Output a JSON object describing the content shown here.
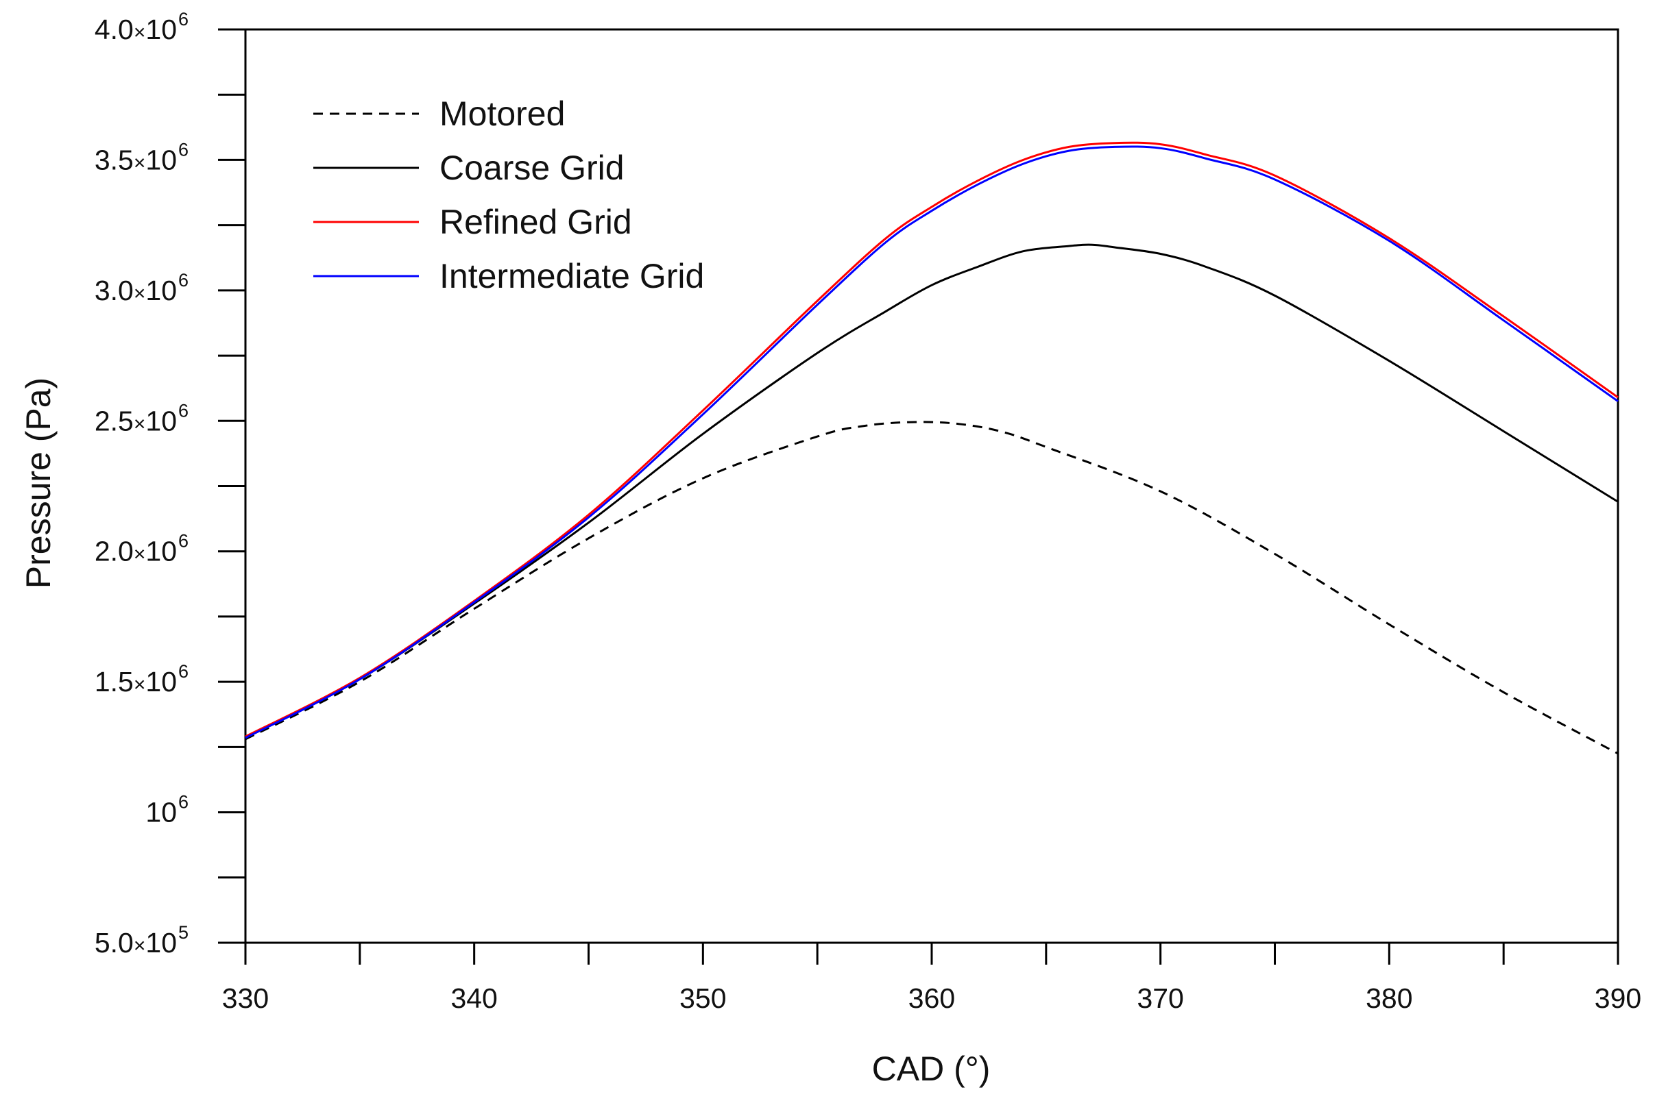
{
  "chart_data": {
    "type": "line",
    "title": "",
    "xlabel": "CAD (°)",
    "ylabel": "Pressure (Pa)",
    "xlim": [
      330,
      390
    ],
    "ylim": [
      500000,
      4000000
    ],
    "grid": false,
    "legend_position": "top-left",
    "x_ticks": [
      {
        "value": 330,
        "label": "330"
      },
      {
        "value": 340,
        "label": "340"
      },
      {
        "value": 350,
        "label": "350"
      },
      {
        "value": 360,
        "label": "360"
      },
      {
        "value": 370,
        "label": "370"
      },
      {
        "value": 380,
        "label": "380"
      },
      {
        "value": 390,
        "label": "390"
      }
    ],
    "x_minor_ticks": [
      335,
      345,
      355,
      365,
      375,
      385
    ],
    "y_ticks": [
      {
        "value": 500000,
        "mantissa": "5.0",
        "times": "×",
        "base": "10",
        "exp": "5"
      },
      {
        "value": 1000000,
        "mantissa": "",
        "times": "",
        "base": "10",
        "exp": "6"
      },
      {
        "value": 1500000,
        "mantissa": "1.5",
        "times": "×",
        "base": "10",
        "exp": "6"
      },
      {
        "value": 2000000,
        "mantissa": "2.0",
        "times": "×",
        "base": "10",
        "exp": "6"
      },
      {
        "value": 2500000,
        "mantissa": "2.5",
        "times": "×",
        "base": "10",
        "exp": "6"
      },
      {
        "value": 3000000,
        "mantissa": "3.0",
        "times": "×",
        "base": "10",
        "exp": "6"
      },
      {
        "value": 3500000,
        "mantissa": "3.5",
        "times": "×",
        "base": "10",
        "exp": "6"
      },
      {
        "value": 4000000,
        "mantissa": "4.0",
        "times": "×",
        "base": "10",
        "exp": "6"
      }
    ],
    "y_minor_ticks": [
      750000,
      1250000,
      1750000,
      2250000,
      2750000,
      3250000,
      3750000
    ],
    "series": [
      {
        "name": "Motored",
        "color": "#000000",
        "dash": true,
        "x": [
          330,
          335,
          340,
          345,
          350,
          355,
          357,
          359,
          361,
          363,
          365,
          370,
          375,
          380,
          385,
          390
        ],
        "values": [
          1280000,
          1500000,
          1780000,
          2050000,
          2280000,
          2440000,
          2480000,
          2495000,
          2490000,
          2460000,
          2400000,
          2230000,
          1990000,
          1720000,
          1460000,
          1225000
        ]
      },
      {
        "name": "Coarse Grid",
        "color": "#000000",
        "dash": false,
        "x": [
          330,
          335,
          340,
          345,
          350,
          355,
          358,
          360,
          362,
          364,
          366,
          367,
          368,
          370,
          372,
          375,
          380,
          385,
          390
        ],
        "values": [
          1285000,
          1510000,
          1800000,
          2110000,
          2450000,
          2760000,
          2920000,
          3020000,
          3090000,
          3150000,
          3170000,
          3175000,
          3165000,
          3140000,
          3090000,
          2980000,
          2730000,
          2460000,
          2190000
        ]
      },
      {
        "name": "Refined Grid",
        "color": "#ff0000",
        "dash": false,
        "x": [
          330,
          335,
          340,
          345,
          350,
          355,
          358,
          360,
          362,
          364,
          366,
          368,
          370,
          372,
          375,
          380,
          385,
          390
        ],
        "values": [
          1290000,
          1515000,
          1810000,
          2140000,
          2540000,
          2960000,
          3200000,
          3320000,
          3420000,
          3500000,
          3550000,
          3565000,
          3560000,
          3520000,
          3440000,
          3200000,
          2900000,
          2590000
        ]
      },
      {
        "name": "Intermediate Grid",
        "color": "#0000ff",
        "dash": false,
        "x": [
          330,
          335,
          340,
          345,
          350,
          355,
          358,
          360,
          362,
          364,
          366,
          368,
          370,
          372,
          375,
          380,
          385,
          390
        ],
        "values": [
          1285000,
          1510000,
          1805000,
          2130000,
          2525000,
          2945000,
          3185000,
          3305000,
          3405000,
          3485000,
          3535000,
          3550000,
          3545000,
          3505000,
          3425000,
          3190000,
          2885000,
          2575000
        ]
      }
    ]
  }
}
